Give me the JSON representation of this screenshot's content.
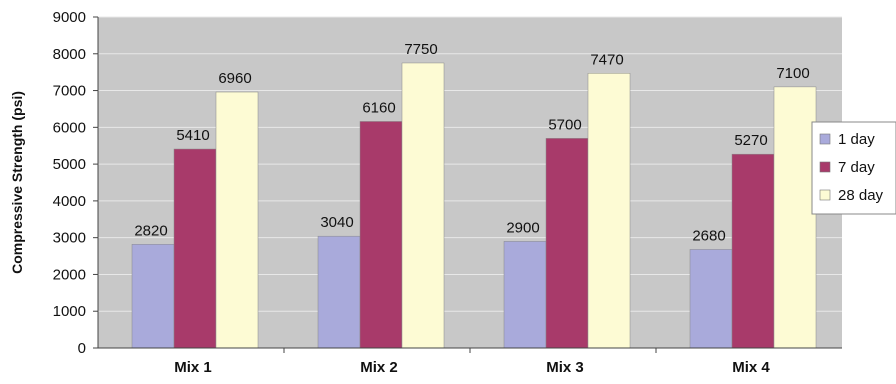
{
  "chart_data": {
    "type": "bar",
    "title": "",
    "xlabel": "",
    "ylabel": "Compressive Strength (psi)",
    "ylim": [
      0,
      9000
    ],
    "yticks": [
      0,
      1000,
      2000,
      3000,
      4000,
      5000,
      6000,
      7000,
      8000,
      9000
    ],
    "grid": true,
    "legend_position": "right",
    "categories": [
      "Mix 1",
      "Mix 2",
      "Mix 3",
      "Mix 4"
    ],
    "series": [
      {
        "name": "1 day",
        "values": [
          2820,
          3040,
          2900,
          2680
        ],
        "color": "#a9aadb"
      },
      {
        "name": "7 day",
        "values": [
          5410,
          6160,
          5700,
          5270
        ],
        "color": "#a83a6a"
      },
      {
        "name": "28 day",
        "values": [
          6960,
          7750,
          7470,
          7100
        ],
        "color": "#fdfbd4"
      }
    ],
    "plot_background": "#c8c8c8",
    "gridline_color": "#e8e8e8"
  }
}
